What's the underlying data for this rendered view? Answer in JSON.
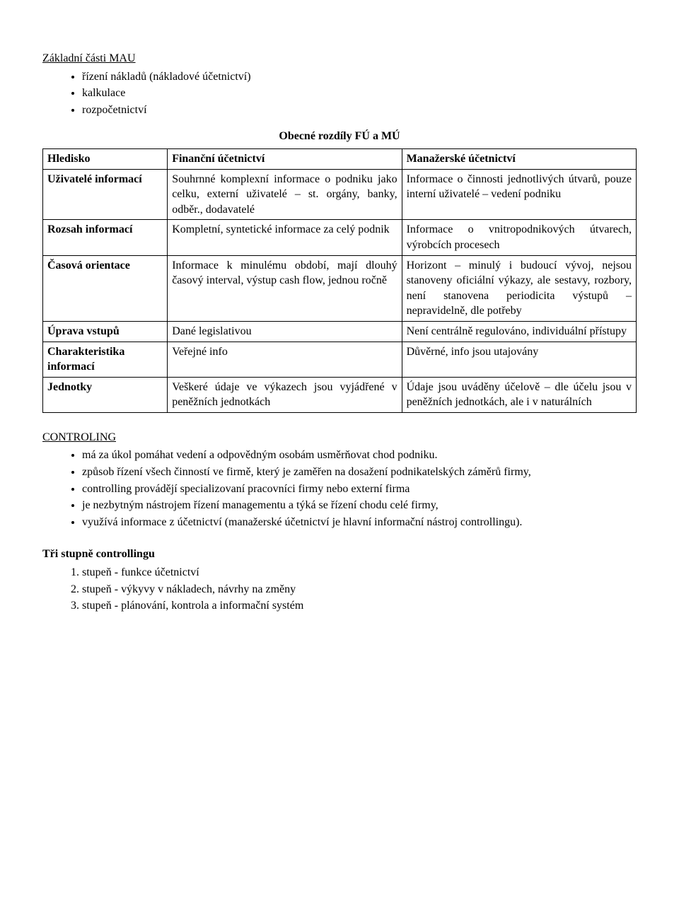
{
  "title": "Základní části MAU",
  "parts": [
    "řízení nákladů (nákladové účetnictví)",
    "kalkulace",
    "rozpočetnictví"
  ],
  "tableHeading": "Obecné rozdíly FÚ a MÚ",
  "cols": {
    "c0": "Hledisko",
    "c1": "Finanční účetnictví",
    "c2": "Manažerské účetnictví"
  },
  "rows": [
    {
      "h": "Uživatelé informací",
      "f": "Souhrnné komplexní informace o podniku jako celku, externí uživatelé – st. orgány, banky, odběr., dodavatelé",
      "m": "Informace o činnosti jednotlivých útvarů, pouze interní uživatelé – vedení podniku"
    },
    {
      "h": "Rozsah informací",
      "f": "Kompletní, syntetické informace za celý podnik",
      "m": "Informace o vnitropodnikových útvarech, výrobcích procesech"
    },
    {
      "h": "Časová orientace",
      "f": "Informace k minulému období, mají dlouhý časový interval, výstup cash flow, jednou ročně",
      "m": "Horizont – minulý i budoucí vývoj, nejsou stanoveny oficiální výkazy, ale sestavy, rozbory, není stanovena periodicita výstupů – nepravidelně, dle potřeby"
    },
    {
      "h": "Úprava vstupů",
      "f": "Dané legislativou",
      "m": "Není centrálně regulováno, individuální přístupy"
    },
    {
      "h": "Charakteristika informací",
      "f": "Veřejné info",
      "m": "Důvěrné, info jsou utajovány"
    },
    {
      "h": "Jednotky",
      "f": "Veškeré údaje ve výkazech jsou vyjádřené v peněžních jednotkách",
      "m": "Údaje jsou uváděny účelově – dle účelu jsou v peněžních jednotkách, ale i v naturálních"
    }
  ],
  "controlingTitle": "CONTROLING",
  "controlingBullets": [
    "má za úkol pomáhat vedení a odpovědným osobám usměrňovat chod podniku.",
    "způsob řízení všech činností ve firmě, který je zaměřen na dosažení podnikatelských záměrů firmy,",
    "controlling provádějí specializovaní pracovníci firmy nebo externí firma",
    "je nezbytným nástrojem řízení managementu a týká se řízení chodu celé firmy,",
    "využívá informace z účetnictví (manažerské účetnictví je hlavní informační nástroj controllingu)."
  ],
  "levelsTitle": "Tři stupně controllingu",
  "levels": [
    "stupeň - funkce účetnictví",
    "stupeň - výkyvy v nákladech, návrhy na změny",
    "stupeň - plánování, kontrola a informační systém"
  ]
}
